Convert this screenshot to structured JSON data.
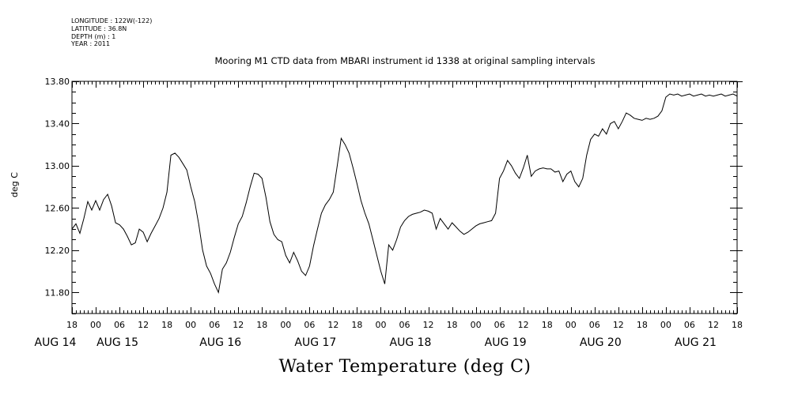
{
  "header": {
    "meta": [
      "LONGITUDE : 122W(-122)",
      "LATITUDE : 36.8N",
      "DEPTH (m) : 1",
      "YEAR : 2011"
    ]
  },
  "chart_data": {
    "type": "line",
    "title": "Mooring M1 CTD data from MBARI instrument id 1338 at original sampling intervals",
    "xlabel": "Water Temperature (deg C)",
    "ylabel": "deg C",
    "ylim": [
      11.6,
      13.8
    ],
    "yticks": [
      "11.80",
      "12.20",
      "12.60",
      "13.00",
      "13.40",
      "13.80"
    ],
    "xlim_hours_from_aug14_18h": [
      0,
      168
    ],
    "hour_tick_labels": [
      "18",
      "00",
      "06",
      "12",
      "18",
      "00",
      "06",
      "12",
      "18",
      "00",
      "06",
      "12",
      "18",
      "00",
      "06",
      "12",
      "18",
      "00",
      "06",
      "12",
      "18",
      "00",
      "06",
      "12",
      "18",
      "00",
      "06",
      "12",
      "18"
    ],
    "day_labels": [
      "AUG 14",
      "AUG 15",
      "AUG 16",
      "AUG 17",
      "AUG 18",
      "AUG 19",
      "AUG 20",
      "AUG 21"
    ],
    "series": [
      {
        "x": [
          0,
          1,
          2,
          3,
          4,
          5,
          6,
          7,
          8,
          9,
          10,
          11,
          12,
          13,
          14,
          15,
          16,
          17,
          18,
          19,
          20,
          21,
          22,
          23,
          24,
          25,
          26,
          27,
          28,
          29,
          30,
          31,
          32,
          33,
          34,
          35,
          36,
          37,
          38,
          39,
          40,
          41,
          42,
          43,
          44,
          45,
          46,
          47,
          48,
          49,
          50,
          51,
          52,
          53,
          54,
          55,
          56,
          57,
          58,
          59,
          60,
          61,
          62,
          63,
          64,
          65,
          66,
          67,
          68,
          69,
          70,
          71,
          72,
          73,
          74,
          75,
          76,
          77,
          78,
          79,
          80,
          81,
          82,
          83,
          84,
          85,
          86,
          87,
          88,
          89,
          90,
          91,
          92,
          93,
          94,
          95,
          96,
          97,
          98,
          99,
          100,
          101,
          102,
          103,
          104,
          105,
          106,
          107,
          108,
          109,
          110,
          111,
          112,
          113,
          114,
          115,
          116,
          117,
          118,
          119,
          120,
          121,
          122,
          123,
          124,
          125,
          126,
          127,
          128,
          129,
          130,
          131,
          132,
          133,
          134,
          135,
          136,
          137,
          138,
          139,
          140,
          141,
          142,
          143,
          144,
          145,
          146,
          147,
          148,
          149,
          150,
          151,
          152,
          153,
          154,
          155,
          156,
          157,
          158,
          159,
          160,
          161,
          162,
          163,
          164,
          165,
          166,
          167,
          168
        ],
        "y": [
          12.4,
          12.45,
          12.36,
          12.5,
          12.66,
          12.58,
          12.67,
          12.58,
          12.68,
          12.73,
          12.62,
          12.46,
          12.44,
          12.4,
          12.33,
          12.25,
          12.27,
          12.4,
          12.37,
          12.28,
          12.36,
          12.43,
          12.5,
          12.6,
          12.75,
          13.1,
          13.12,
          13.08,
          13.02,
          12.96,
          12.8,
          12.66,
          12.45,
          12.2,
          12.05,
          11.98,
          11.88,
          11.8,
          12.02,
          12.08,
          12.18,
          12.32,
          12.45,
          12.52,
          12.65,
          12.8,
          12.93,
          12.92,
          12.88,
          12.7,
          12.47,
          12.35,
          12.3,
          12.28,
          12.15,
          12.08,
          12.18,
          12.1,
          12.0,
          11.96,
          12.05,
          12.24,
          12.4,
          12.55,
          12.63,
          12.68,
          12.75,
          13.0,
          13.26,
          13.2,
          13.12,
          12.98,
          12.83,
          12.67,
          12.55,
          12.45,
          12.3,
          12.15,
          12.0,
          11.88,
          12.25,
          12.2,
          12.3,
          12.42,
          12.48,
          12.52,
          12.54,
          12.55,
          12.56,
          12.58,
          12.57,
          12.55,
          12.4,
          12.5,
          12.45,
          12.4,
          12.46,
          12.42,
          12.38,
          12.35,
          12.37,
          12.4,
          12.43,
          12.45,
          12.46,
          12.47,
          12.48,
          12.55,
          12.88,
          12.95,
          13.05,
          13.0,
          12.93,
          12.88,
          12.98,
          13.1,
          12.9,
          12.95,
          12.97,
          12.98,
          12.97,
          12.97,
          12.94,
          12.95,
          12.85,
          12.92,
          12.95,
          12.85,
          12.8,
          12.88,
          13.1,
          13.25,
          13.3,
          13.28,
          13.35,
          13.3,
          13.4,
          13.42,
          13.35,
          13.42,
          13.5,
          13.48,
          13.45,
          13.44,
          13.43,
          13.45,
          13.44,
          13.45,
          13.47,
          13.52,
          13.65,
          13.68,
          13.67,
          13.68,
          13.66,
          13.67,
          13.68,
          13.66,
          13.67,
          13.68,
          13.66,
          13.67,
          13.66,
          13.67,
          13.68,
          13.66,
          13.67,
          13.68,
          13.66
        ]
      }
    ]
  }
}
